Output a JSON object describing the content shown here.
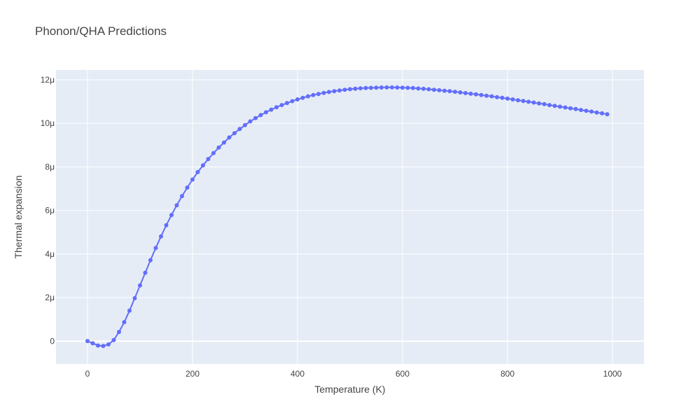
{
  "chart_data": {
    "type": "line",
    "title": "Phonon/QHA Predictions",
    "xlabel": "Temperature (K)",
    "ylabel": "Thermal expansion",
    "xlim": [
      -60,
      1060
    ],
    "ylim": [
      -1.05,
      12.45
    ],
    "y_unit_multiplier": 1e-06,
    "x_ticks": [
      0,
      200,
      400,
      600,
      800,
      1000
    ],
    "x_tick_labels": [
      "0",
      "200",
      "400",
      "600",
      "800",
      "1000"
    ],
    "y_ticks": [
      0,
      2,
      4,
      6,
      8,
      10,
      12
    ],
    "y_tick_labels": [
      "0",
      "2μ",
      "4μ",
      "6μ",
      "8μ",
      "10μ",
      "12μ"
    ],
    "grid": true,
    "colors": {
      "plot_bg": "#e5ecf6",
      "grid": "#ffffff",
      "series": "#636efa",
      "text": "#444444"
    },
    "series": [
      {
        "mode": "lines+markers",
        "x": [
          0,
          10,
          20,
          30,
          40,
          50,
          60,
          70,
          80,
          90,
          100,
          110,
          120,
          130,
          140,
          150,
          160,
          170,
          180,
          190,
          200,
          210,
          220,
          230,
          240,
          250,
          260,
          270,
          280,
          290,
          300,
          310,
          320,
          330,
          340,
          350,
          360,
          370,
          380,
          390,
          400,
          410,
          420,
          430,
          440,
          450,
          460,
          470,
          480,
          490,
          500,
          510,
          520,
          530,
          540,
          550,
          560,
          570,
          580,
          590,
          600,
          610,
          620,
          630,
          640,
          650,
          660,
          670,
          680,
          690,
          700,
          710,
          720,
          730,
          740,
          750,
          760,
          770,
          780,
          790,
          800,
          810,
          820,
          830,
          840,
          850,
          860,
          870,
          880,
          890,
          900,
          910,
          920,
          930,
          940,
          950,
          960,
          970,
          980,
          990
        ],
        "y": [
          0.0,
          -0.1,
          -0.2,
          -0.22,
          -0.15,
          0.05,
          0.42,
          0.87,
          1.4,
          1.97,
          2.56,
          3.14,
          3.72,
          4.28,
          4.81,
          5.32,
          5.79,
          6.24,
          6.66,
          7.05,
          7.42,
          7.76,
          8.07,
          8.36,
          8.63,
          8.89,
          9.12,
          9.35,
          9.55,
          9.74,
          9.92,
          10.09,
          10.24,
          10.38,
          10.51,
          10.63,
          10.74,
          10.84,
          10.93,
          11.02,
          11.1,
          11.17,
          11.24,
          11.3,
          11.35,
          11.4,
          11.44,
          11.48,
          11.51,
          11.54,
          11.57,
          11.59,
          11.61,
          11.62,
          11.63,
          11.64,
          11.645,
          11.65,
          11.65,
          11.645,
          11.64,
          11.63,
          11.62,
          11.6,
          11.585,
          11.565,
          11.545,
          11.52,
          11.5,
          11.475,
          11.45,
          11.42,
          11.39,
          11.36,
          11.33,
          11.3,
          11.27,
          11.24,
          11.2,
          11.17,
          11.135,
          11.1,
          11.06,
          11.025,
          10.99,
          10.955,
          10.915,
          10.88,
          10.84,
          10.8,
          10.765,
          10.73,
          10.69,
          10.655,
          10.615,
          10.58,
          10.54,
          10.5,
          10.46,
          10.42
        ]
      }
    ]
  }
}
